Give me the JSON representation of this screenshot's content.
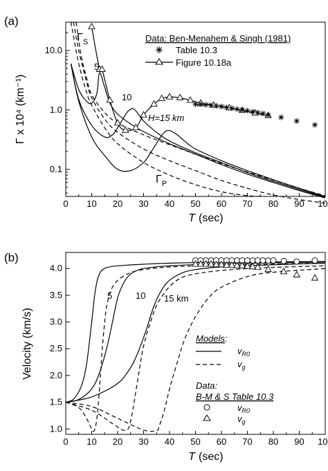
{
  "panel_a": {
    "label": "(a)",
    "xlabel_var": "T",
    "xlabel_unit": "(sec)",
    "ylabel": "Γ x 10⁴ (km⁻¹)",
    "gamma_s": "Γ",
    "gamma_s_sub": "S",
    "gamma_p": "Γ",
    "gamma_p_sub": "P",
    "ann_5": "5",
    "ann_10": "10",
    "ann_15": "H=15 km",
    "legend_title": "Data: Ben-Menahem & Singh (1981)",
    "legend_star": "Table 10.3",
    "legend_tri": "Figure 10.18a",
    "xticks": [
      "0",
      "10",
      "20",
      "30",
      "40",
      "50",
      "60",
      "70",
      "80",
      "90",
      "100"
    ],
    "yticks": [
      "0.1",
      "1.0",
      "10.0"
    ]
  },
  "panel_b": {
    "label": "(b)",
    "xlabel_var": "T",
    "xlabel_unit": "(sec)",
    "ylabel": "Velocity (km/s)",
    "ann_5": "5",
    "ann_10": "10",
    "ann_15": "15 km",
    "models_title": "Models",
    "models_colon": ":",
    "model_solid": "v",
    "model_solid_sub": "R0",
    "model_dash": "v",
    "model_dash_sub": "g",
    "data_title": "Data",
    "data_colon": ":",
    "data_source": "B-M & S Table 10.3",
    "data_circle": "v",
    "data_circle_sub": "R0",
    "data_tri": "v",
    "data_tri_sub": "g",
    "xticks": [
      "0",
      "10",
      "20",
      "30",
      "40",
      "50",
      "60",
      "70",
      "80",
      "90",
      "100"
    ],
    "yticks": [
      "1.0",
      "1.5",
      "2.0",
      "2.5",
      "3.0",
      "3.5",
      "4.0"
    ]
  },
  "chart_data": [
    {
      "type": "line",
      "title": "",
      "xlabel": "T (sec)",
      "ylabel": "Γ x 10⁴ (km⁻¹)",
      "xlim": [
        0,
        100
      ],
      "ylim": [
        0.035,
        30
      ],
      "yscale": "log",
      "series": [
        {
          "style": "solid",
          "x": [
            2,
            5,
            8,
            10,
            12,
            13,
            15,
            17,
            20,
            25,
            30,
            40,
            50,
            60,
            70,
            80,
            90,
            100
          ],
          "y": [
            6,
            2.2,
            1.4,
            1.3,
            1.9,
            4.2,
            2.4,
            1.3,
            0.85,
            0.58,
            0.43,
            0.27,
            0.18,
            0.12,
            0.083,
            0.06,
            0.044,
            0.033
          ]
        },
        {
          "style": "solid",
          "x": [
            2,
            5,
            10,
            15,
            18,
            20,
            22,
            24,
            26,
            28,
            30,
            35,
            40,
            50,
            60,
            70,
            80,
            90,
            100
          ],
          "y": [
            6,
            1.5,
            0.55,
            0.35,
            0.38,
            0.5,
            0.7,
            0.95,
            1.05,
            0.85,
            0.65,
            0.42,
            0.3,
            0.19,
            0.13,
            0.088,
            0.063,
            0.046,
            0.034
          ]
        },
        {
          "style": "solid",
          "x": [
            2,
            5,
            10,
            15,
            20,
            25,
            30,
            33,
            36,
            38,
            40,
            43,
            45,
            50,
            60,
            70,
            80,
            90,
            100
          ],
          "y": [
            6,
            1.4,
            0.35,
            0.17,
            0.1,
            0.095,
            0.13,
            0.2,
            0.32,
            0.42,
            0.45,
            0.38,
            0.32,
            0.22,
            0.14,
            0.095,
            0.067,
            0.048,
            0.035
          ]
        },
        {
          "style": "dashed",
          "name": "Γ_S",
          "x": [
            4,
            6,
            8,
            10,
            15,
            20,
            30,
            40,
            50,
            60,
            70,
            80,
            90,
            100
          ],
          "y": [
            30,
            8,
            3.5,
            1.8,
            0.9,
            0.6,
            0.38,
            0.26,
            0.18,
            0.125,
            0.09,
            0.066,
            0.048,
            0.036
          ]
        },
        {
          "style": "dashed",
          "x": [
            3,
            5,
            8,
            10,
            15,
            20,
            30,
            40,
            50,
            60,
            70,
            80,
            90,
            100
          ],
          "y": [
            30,
            10,
            3,
            1.6,
            0.7,
            0.42,
            0.22,
            0.14,
            0.095,
            0.065,
            0.048,
            0.037,
            0.031,
            0.027
          ]
        },
        {
          "style": "dashed",
          "name": "Γ_P",
          "x": [
            2,
            5,
            8,
            10,
            15,
            20,
            30,
            40,
            50,
            60,
            70,
            77
          ],
          "y": [
            30,
            6,
            2,
            1.2,
            0.5,
            0.27,
            0.13,
            0.08,
            0.055,
            0.042,
            0.036,
            0.035
          ]
        },
        {
          "style": "marker-triangle",
          "name": "Figure 10.18a",
          "x": [
            10,
            13,
            14,
            17,
            20,
            23,
            27,
            30,
            34,
            37,
            40,
            44,
            48,
            52,
            57,
            63,
            68,
            73,
            78
          ],
          "y": [
            25,
            4.8,
            4.8,
            1.45,
            0.6,
            0.45,
            0.5,
            0.82,
            1.25,
            1.55,
            1.65,
            1.6,
            1.45,
            1.3,
            1.2,
            1.08,
            0.98,
            0.88,
            0.8
          ]
        },
        {
          "style": "marker-star",
          "name": "Table 10.3",
          "x": [
            50,
            52,
            54,
            56,
            58,
            60,
            62,
            64,
            66,
            68,
            70,
            72,
            74,
            76,
            78,
            83,
            89,
            96
          ],
          "y": [
            1.25,
            1.24,
            1.22,
            1.2,
            1.17,
            1.14,
            1.1,
            1.07,
            1.03,
            1.0,
            0.97,
            0.93,
            0.9,
            0.87,
            0.82,
            0.75,
            0.65,
            0.56
          ]
        }
      ]
    },
    {
      "type": "line",
      "title": "",
      "xlabel": "T (sec)",
      "ylabel": "Velocity (km/s)",
      "xlim": [
        0,
        100
      ],
      "ylim": [
        0.9,
        4.3
      ],
      "series": [
        {
          "style": "solid",
          "x": [
            0,
            3,
            6,
            8,
            10,
            11,
            12,
            13,
            14,
            16,
            20,
            30,
            50,
            100
          ],
          "y": [
            1.5,
            1.56,
            1.8,
            2.2,
            3.0,
            3.45,
            3.75,
            3.9,
            3.97,
            4.02,
            4.05,
            4.08,
            4.11,
            4.13
          ]
        },
        {
          "style": "solid",
          "x": [
            0,
            5,
            10,
            13,
            16,
            18,
            20,
            22,
            24,
            26,
            30,
            40,
            60,
            100
          ],
          "y": [
            1.5,
            1.55,
            1.75,
            2.05,
            2.55,
            3.0,
            3.45,
            3.7,
            3.85,
            3.93,
            4.0,
            4.05,
            4.09,
            4.12
          ]
        },
        {
          "style": "solid",
          "x": [
            0,
            10,
            20,
            25,
            28,
            31,
            34,
            37,
            40,
            45,
            50,
            60,
            80,
            100
          ],
          "y": [
            1.5,
            1.6,
            1.85,
            2.15,
            2.45,
            2.85,
            3.3,
            3.6,
            3.78,
            3.92,
            3.98,
            4.03,
            4.07,
            4.1
          ]
        },
        {
          "style": "dashed",
          "x": [
            0,
            5,
            8,
            10,
            11,
            12,
            13,
            14,
            15,
            16,
            18,
            22,
            30,
            50,
            100
          ],
          "y": [
            1.5,
            1.4,
            1.2,
            1.0,
            0.97,
            1.2,
            1.75,
            2.45,
            3.0,
            3.35,
            3.65,
            3.85,
            3.98,
            4.05,
            4.1
          ]
        },
        {
          "style": "dashed",
          "x": [
            0,
            10,
            18,
            22,
            24,
            25,
            26,
            28,
            30,
            33,
            36,
            42,
            50,
            70,
            100
          ],
          "y": [
            1.5,
            1.35,
            1.1,
            0.98,
            1.0,
            1.15,
            1.4,
            2.0,
            2.55,
            3.05,
            3.4,
            3.75,
            3.9,
            4.0,
            4.05
          ]
        },
        {
          "style": "dashed",
          "x": [
            0,
            10,
            20,
            30,
            35,
            36,
            38,
            40,
            43,
            46,
            50,
            55,
            60,
            70,
            80,
            100
          ],
          "y": [
            1.5,
            1.42,
            1.2,
            0.98,
            0.97,
            1.05,
            1.35,
            1.75,
            2.25,
            2.7,
            3.1,
            3.45,
            3.65,
            3.85,
            3.93,
            4.0
          ]
        },
        {
          "style": "marker-circle",
          "name": "v_R0",
          "x": [
            50,
            52,
            54,
            56,
            58,
            60,
            62,
            64,
            66,
            68,
            70,
            72,
            74,
            76,
            78,
            80,
            84,
            89,
            96
          ],
          "y": [
            4.15,
            4.15,
            4.15,
            4.15,
            4.15,
            4.15,
            4.15,
            4.15,
            4.15,
            4.15,
            4.15,
            4.15,
            4.15,
            4.15,
            4.15,
            4.15,
            4.14,
            4.13,
            4.15
          ]
        },
        {
          "style": "marker-triangle",
          "name": "v_g",
          "x": [
            50,
            52,
            54,
            56,
            58,
            60,
            62,
            64,
            66,
            68,
            70,
            72,
            74,
            78,
            84,
            89,
            96
          ],
          "y": [
            4.08,
            4.08,
            4.08,
            4.08,
            4.07,
            4.07,
            4.06,
            4.06,
            4.05,
            4.05,
            4.04,
            4.03,
            4.02,
            3.98,
            3.94,
            3.88,
            3.82
          ]
        }
      ]
    }
  ]
}
